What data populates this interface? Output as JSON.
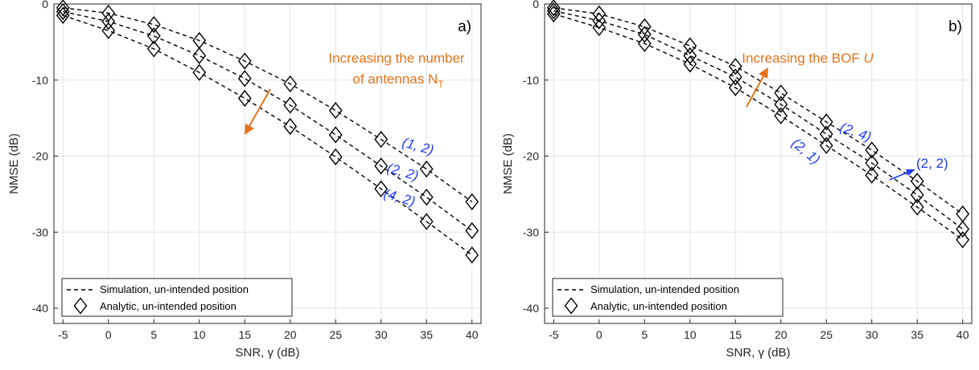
{
  "chart_data": [
    {
      "type": "line",
      "panel_label": "a)",
      "xlabel": "SNR, γ (dB)",
      "ylabel": "NMSE (dB)",
      "xlim": [
        -6,
        41
      ],
      "ylim": [
        -42,
        0
      ],
      "xticks": [
        -5,
        0,
        5,
        10,
        15,
        20,
        25,
        30,
        35,
        40
      ],
      "yticks": [
        0,
        -10,
        -20,
        -30,
        -40
      ],
      "grid": true,
      "legend_position": "bottom-left",
      "legend": [
        "Simulation, un-intended position",
        "Analytic, un-intended position"
      ],
      "x": [
        -5,
        0,
        5,
        10,
        15,
        20,
        25,
        30,
        35,
        40
      ],
      "series": [
        {
          "values": [
            -0.5,
            -1.2,
            -2.7,
            -4.8,
            -7.5,
            -10.5,
            -14.0,
            -17.8,
            -21.7,
            -26.0
          ]
        },
        {
          "values": [
            -1.0,
            -2.3,
            -4.2,
            -6.8,
            -9.8,
            -13.3,
            -17.2,
            -21.3,
            -25.4,
            -29.8
          ]
        },
        {
          "values": [
            -1.5,
            -3.5,
            -5.9,
            -9.0,
            -12.4,
            -16.1,
            -20.1,
            -24.3,
            -28.6,
            -33.0
          ]
        }
      ],
      "annotations": {
        "arrow_text": [
          "Increasing the number",
          "of antennas N"
        ],
        "arrow_text_sub": "T",
        "labels": [
          "(1, 2)",
          "(2, 2)",
          "(4, 2)"
        ]
      }
    },
    {
      "type": "line",
      "panel_label": "b)",
      "xlabel": "SNR, γ (dB)",
      "ylabel": "NMSE (dB)",
      "xlim": [
        -6,
        41
      ],
      "ylim": [
        -42,
        0
      ],
      "xticks": [
        -5,
        0,
        5,
        10,
        15,
        20,
        25,
        30,
        35,
        40
      ],
      "yticks": [
        0,
        -10,
        -20,
        -30,
        -40
      ],
      "grid": true,
      "legend_position": "bottom-left",
      "legend": [
        "Simulation, un-intended position",
        "Analytic, un-intended position"
      ],
      "x": [
        -5,
        0,
        5,
        10,
        15,
        20,
        25,
        30,
        35,
        40
      ],
      "series": [
        {
          "values": [
            -0.5,
            -1.3,
            -3.0,
            -5.5,
            -8.2,
            -11.7,
            -15.5,
            -19.2,
            -23.3,
            -27.6
          ]
        },
        {
          "values": [
            -0.9,
            -2.2,
            -4.0,
            -6.8,
            -9.6,
            -13.2,
            -17.1,
            -20.9,
            -25.1,
            -29.6
          ]
        },
        {
          "values": [
            -1.3,
            -3.1,
            -5.2,
            -7.9,
            -11.0,
            -14.7,
            -18.6,
            -22.5,
            -26.7,
            -31.0
          ]
        }
      ],
      "annotations": {
        "arrow_text_prefix": "Increasing the BOF ",
        "arrow_text_var": "U",
        "labels": [
          "(2, 4)",
          "(2, 1)",
          "(2, 2)"
        ]
      }
    }
  ]
}
